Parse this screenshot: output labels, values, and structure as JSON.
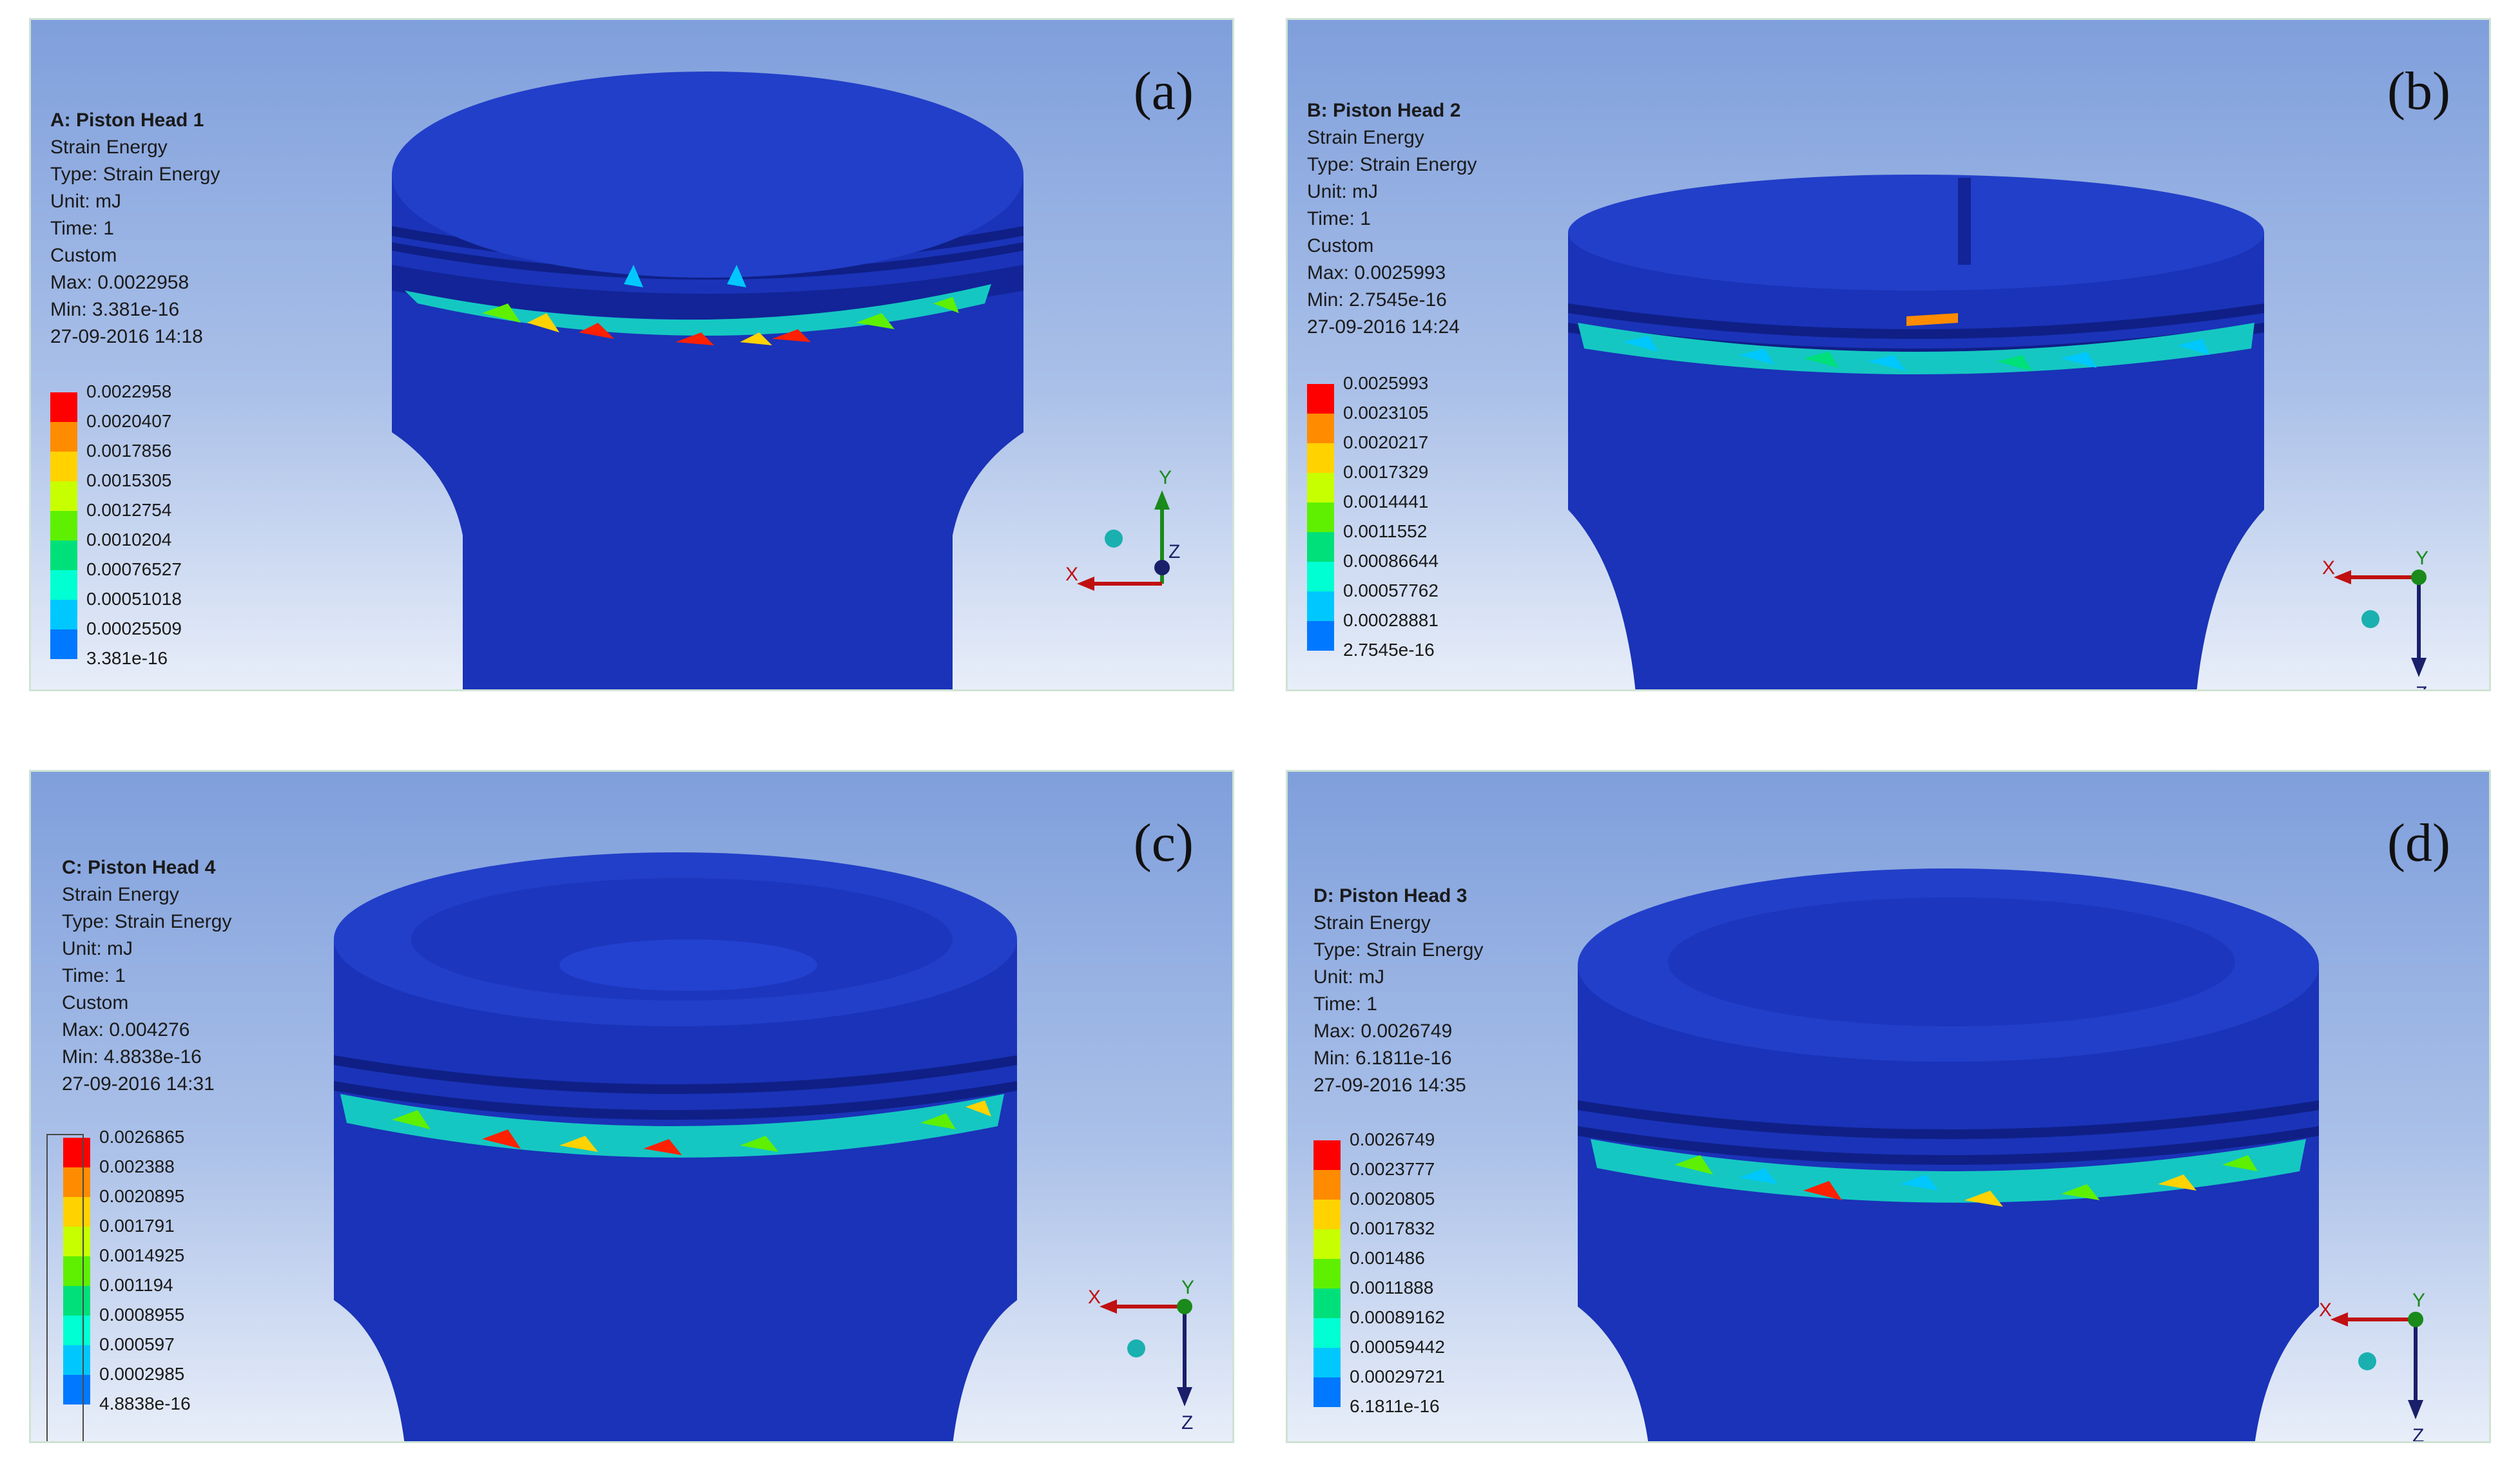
{
  "colors": {
    "legend": [
      "#ff0000",
      "#ff8c00",
      "#ffd200",
      "#c8ff00",
      "#5ef000",
      "#00e07a",
      "#00ffd2",
      "#00c8ff",
      "#0078ff",
      "#0000ff"
    ],
    "body": "#1a33b8",
    "body_dark": "#122497",
    "body_top": "#223fc9"
  },
  "panels": [
    {
      "letter": "(a)",
      "title": "A: Piston Head 1",
      "lines": [
        "Strain Energy",
        "Type: Strain Energy",
        "Unit: mJ",
        "Time: 1",
        "Custom",
        "Max: 0.0022958",
        "Min: 3.381e-16",
        "27-09-2016 14:18"
      ],
      "legend": [
        "0.0022958",
        "0.0020407",
        "0.0017856",
        "0.0015305",
        "0.0012754",
        "0.0010204",
        "0.00076527",
        "0.00051018",
        "0.00025509",
        "3.381e-16"
      ],
      "triad": {
        "x": "X",
        "y": "Y",
        "z": "Z"
      }
    },
    {
      "letter": "(b)",
      "title": "B: Piston Head 2",
      "lines": [
        "Strain Energy",
        "Type: Strain Energy",
        "Unit: mJ",
        "Time: 1",
        "Custom",
        "Max: 0.0025993",
        "Min: 2.7545e-16",
        "27-09-2016 14:24"
      ],
      "legend": [
        "0.0025993",
        "0.0023105",
        "0.0020217",
        "0.0017329",
        "0.0014441",
        "0.0011552",
        "0.00086644",
        "0.00057762",
        "0.00028881",
        "2.7545e-16"
      ],
      "triad": {
        "x": "X",
        "y": "Y",
        "z": "Z"
      }
    },
    {
      "letter": "(c)",
      "title": "C: Piston Head 4",
      "lines": [
        "Strain Energy",
        "Type: Strain Energy",
        "Unit: mJ",
        "Time: 1",
        "Custom",
        "Max: 0.004276",
        "Min: 4.8838e-16",
        "27-09-2016 14:31"
      ],
      "legend": [
        "0.0026865",
        "0.002388",
        "0.0020895",
        "0.001791",
        "0.0014925",
        "0.001194",
        "0.0008955",
        "0.000597",
        "0.0002985",
        "4.8838e-16"
      ],
      "triad": {
        "x": "X",
        "y": "Y",
        "z": "Z"
      }
    },
    {
      "letter": "(d)",
      "title": "D: Piston Head 3",
      "lines": [
        "Strain Energy",
        "Type: Strain Energy",
        "Unit: mJ",
        "Time: 1",
        "Max: 0.0026749",
        "Min: 6.1811e-16",
        "27-09-2016 14:35"
      ],
      "legend": [
        "0.0026749",
        "0.0023777",
        "0.0020805",
        "0.0017832",
        "0.001486",
        "0.0011888",
        "0.00089162",
        "0.00059442",
        "0.00029721",
        "6.1811e-16"
      ],
      "triad": {
        "x": "X",
        "y": "Y",
        "z": "Z"
      }
    }
  ]
}
